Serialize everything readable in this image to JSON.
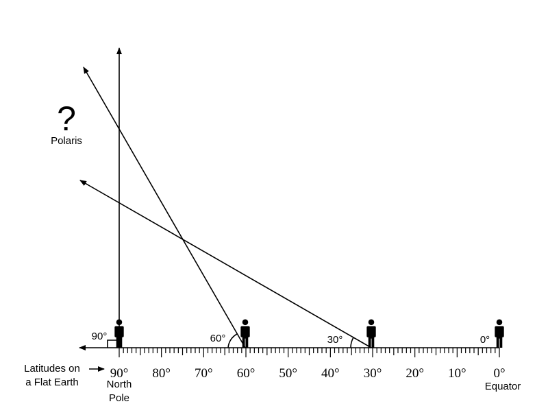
{
  "polaris": {
    "symbol": "?",
    "label": "Polaris"
  },
  "angles": [
    "90°",
    "60°",
    "30°",
    "0°"
  ],
  "scale_labels": [
    "90°",
    "80°",
    "70°",
    "60°",
    "50°",
    "40°",
    "30°",
    "20°",
    "10°",
    "0°"
  ],
  "caption": [
    "Latitudes on",
    "a Flat Earth"
  ],
  "north_pole": [
    "North",
    "Pole"
  ],
  "equator": "Equator"
}
